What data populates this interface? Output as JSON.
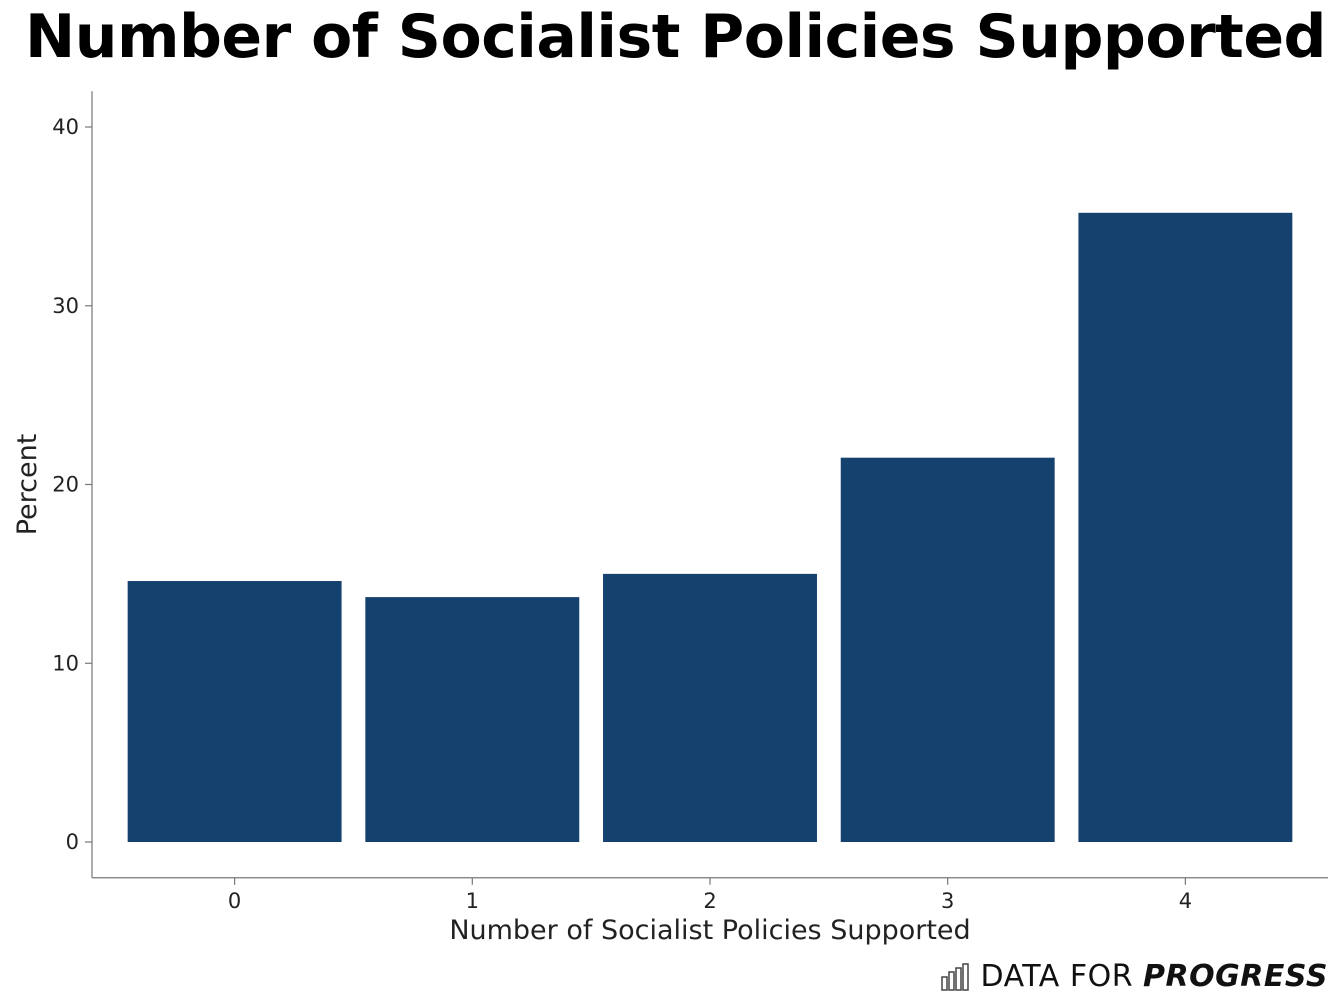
{
  "chart_data": {
    "type": "bar",
    "title": "Number of Socialist Policies Supported",
    "xlabel": "Number of Socialist Policies Supported",
    "ylabel": "Percent",
    "categories": [
      "0",
      "1",
      "2",
      "3",
      "4"
    ],
    "values": [
      14.6,
      13.7,
      15.0,
      21.5,
      35.2
    ],
    "yticks": [
      "0",
      "10",
      "20",
      "30",
      "40"
    ],
    "ylim": [
      -2,
      42
    ],
    "grid": false,
    "bar_color": "#15416F"
  },
  "branding": {
    "light_text": "DATA FOR",
    "strong_text": "PROGRESS",
    "logo_icon": "bar-chart-icon"
  }
}
